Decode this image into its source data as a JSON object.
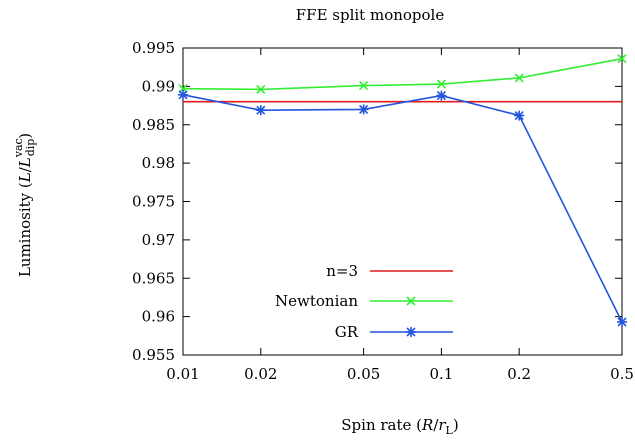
{
  "chart_data": {
    "type": "line",
    "title": "FFE split monopole",
    "xlabel": "Spin rate (R/r_L)",
    "ylabel": "Luminosity (L/L_dip^vac)",
    "x_scale": "log",
    "xlim": [
      0.01,
      0.5
    ],
    "ylim": [
      0.955,
      0.995
    ],
    "x_ticks": [
      0.01,
      0.02,
      0.05,
      0.1,
      0.2,
      0.5
    ],
    "x_tick_labels": [
      "0.01",
      "0.02",
      "0.05",
      "0.1",
      "0.2",
      "0.5"
    ],
    "y_ticks": [
      0.955,
      0.96,
      0.965,
      0.97,
      0.975,
      0.98,
      0.985,
      0.99,
      0.995
    ],
    "y_tick_labels": [
      "0.955",
      "0.96",
      "0.965",
      "0.97",
      "0.975",
      "0.98",
      "0.985",
      "0.99",
      "0.995"
    ],
    "legend_position": "bottom-left",
    "grid": false,
    "series": [
      {
        "name": "n=3",
        "color": "#e41a1c",
        "marker": "none",
        "x": [
          0.01,
          0.5
        ],
        "y": [
          0.988,
          0.988
        ]
      },
      {
        "name": "Newtonian",
        "color": "#33ee33",
        "marker": "x",
        "x": [
          0.01,
          0.02,
          0.05,
          0.1,
          0.2,
          0.5
        ],
        "y": [
          0.9897,
          0.9896,
          0.9901,
          0.9903,
          0.9911,
          0.9936
        ]
      },
      {
        "name": "GR",
        "color": "#2255dd",
        "marker": "star",
        "x": [
          0.01,
          0.02,
          0.05,
          0.1,
          0.2,
          0.5
        ],
        "y": [
          0.9889,
          0.9869,
          0.987,
          0.9888,
          0.9862,
          0.9593
        ]
      }
    ]
  }
}
